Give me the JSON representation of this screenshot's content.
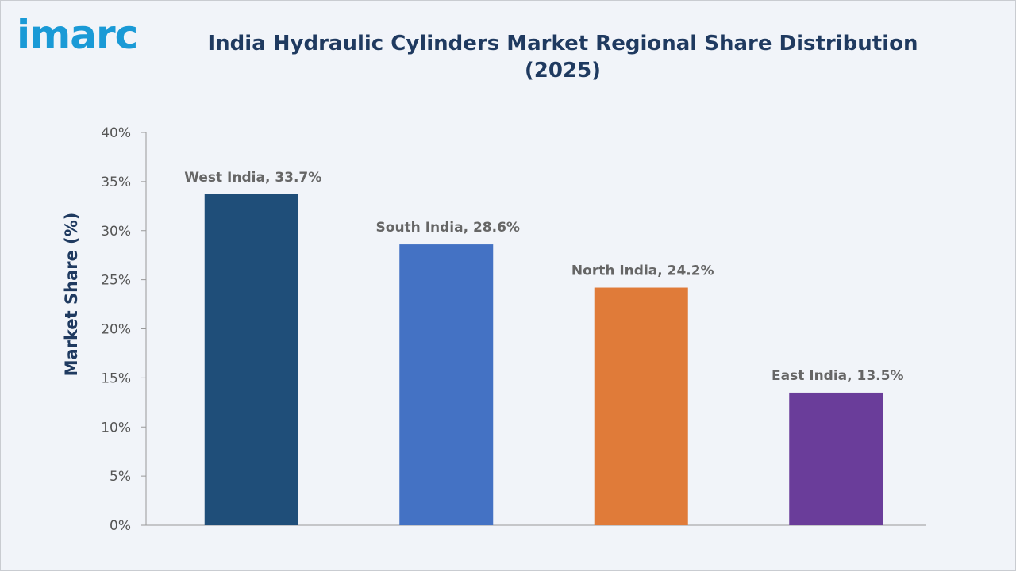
{
  "logo_text": "imarc",
  "chart_data": {
    "type": "bar",
    "title": "India Hydraulic Cylinders Market Regional Share Distribution (2025)",
    "xlabel": "",
    "ylabel": "Market Share (%)",
    "categories": [
      "West India",
      "South India",
      "North India",
      "East India"
    ],
    "values": [
      33.7,
      28.6,
      24.2,
      13.5
    ],
    "data_labels": [
      "West India, 33.7%",
      "South India, 28.6%",
      "North India, 24.2%",
      "East India, 13.5%"
    ],
    "colors": [
      "#1f4e79",
      "#4472c4",
      "#e07b39",
      "#6a3d9a"
    ],
    "ylim": [
      0,
      40
    ],
    "yticks": [
      "0%",
      "5%",
      "10%",
      "15%",
      "20%",
      "25%",
      "30%",
      "35%",
      "40%"
    ],
    "grid": false,
    "legend": "none"
  }
}
